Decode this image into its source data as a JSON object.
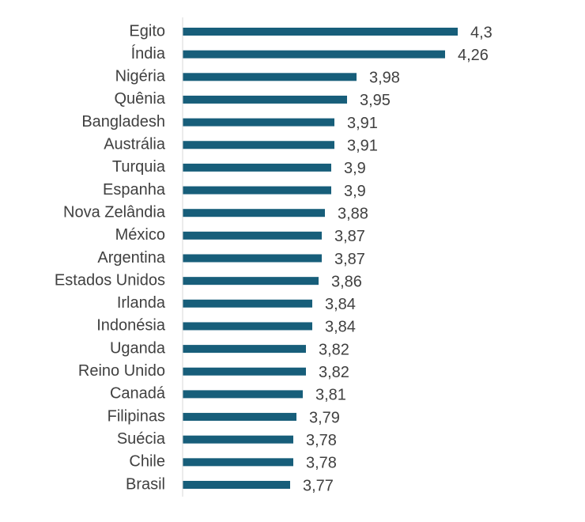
{
  "chart_data": {
    "type": "bar",
    "orientation": "horizontal",
    "categories": [
      "Egito",
      "Índia",
      "Nigéria",
      "Quênia",
      "Bangladesh",
      "Austrália",
      "Turquia",
      "Espanha",
      "Nova Zelândia",
      "México",
      "Argentina",
      "Estados Unidos",
      "Irlanda",
      "Indonésia",
      "Uganda",
      "Reino Unido",
      "Canadá",
      "Filipinas",
      "Suécia",
      "Chile",
      "Brasil"
    ],
    "values": [
      4.3,
      4.26,
      3.98,
      3.95,
      3.91,
      3.91,
      3.9,
      3.9,
      3.88,
      3.87,
      3.87,
      3.86,
      3.84,
      3.84,
      3.82,
      3.82,
      3.81,
      3.79,
      3.78,
      3.78,
      3.77
    ],
    "value_labels": [
      "4,3",
      "4,26",
      "3,98",
      "3,95",
      "3,91",
      "3,91",
      "3,9",
      "3,9",
      "3,88",
      "3,87",
      "3,87",
      "3,86",
      "3,84",
      "3,84",
      "3,82",
      "3,82",
      "3,81",
      "3,79",
      "3,78",
      "3,78",
      "3,77"
    ],
    "xlim": [
      3.43,
      4.3
    ],
    "grid": false,
    "legend": "none",
    "colors": {
      "bar": "#175e7a",
      "axis": "#d9d9d9",
      "text": "#404040"
    }
  }
}
